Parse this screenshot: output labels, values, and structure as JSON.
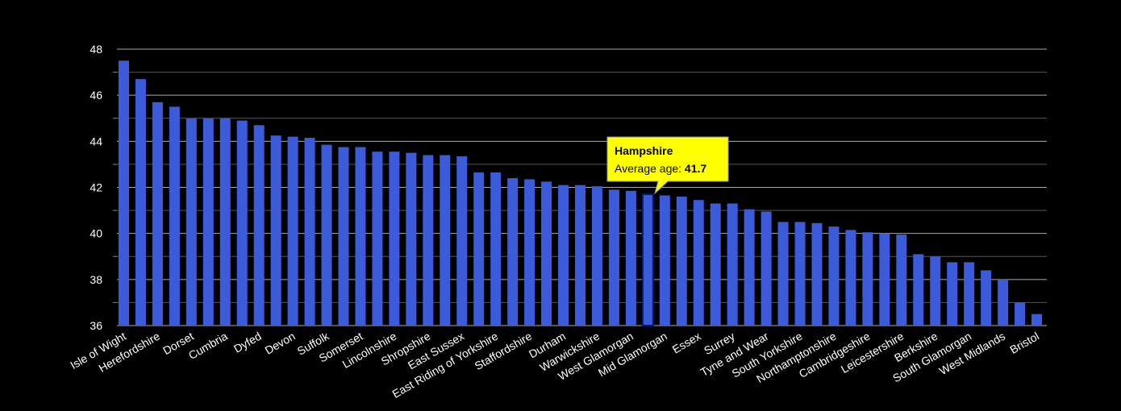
{
  "chart_data": {
    "type": "bar",
    "categories": [
      "Isle of Wight",
      null,
      "Herefordshire",
      null,
      "Dorset",
      null,
      "Cumbria",
      null,
      "Dyfed",
      null,
      "Devon",
      null,
      "Suffolk",
      null,
      "Somerset",
      null,
      "Lincolnshire",
      null,
      "Shropshire",
      null,
      "East Sussex",
      null,
      "East Riding of Yorkshire",
      null,
      "Staffordshire",
      null,
      "Durham",
      null,
      "Warwickshire",
      null,
      "West Glamorgan",
      null,
      "Mid Glamorgan",
      null,
      "Essex",
      null,
      "Surrey",
      null,
      "Tyne and Wear",
      null,
      "South Yorkshire",
      null,
      "Northamptonshire",
      null,
      "Cambridgeshire",
      null,
      "Leicestershire",
      null,
      "Berkshire",
      null,
      "South Glamorgan",
      null,
      "West Midlands",
      null,
      "Bristol"
    ],
    "values": [
      47.5,
      46.7,
      45.7,
      45.5,
      45.0,
      45.0,
      45.0,
      44.9,
      44.7,
      44.25,
      44.2,
      44.15,
      43.85,
      43.75,
      43.75,
      43.55,
      43.55,
      43.5,
      43.4,
      43.4,
      43.35,
      42.65,
      42.65,
      42.4,
      42.35,
      42.25,
      42.1,
      42.1,
      42.05,
      41.9,
      41.85,
      41.7,
      41.65,
      41.6,
      41.45,
      41.3,
      41.3,
      41.05,
      40.95,
      40.5,
      40.5,
      40.45,
      40.3,
      40.15,
      40.05,
      40.0,
      39.95,
      39.1,
      39.0,
      38.75,
      38.75,
      38.4,
      38.0,
      37.0,
      36.5
    ],
    "color": "#3b5bdb",
    "ylim": [
      36,
      48
    ],
    "yticks": [
      36,
      38,
      40,
      42,
      44,
      46,
      48
    ],
    "minor_yticks": [
      37,
      39,
      41,
      43,
      45,
      47
    ],
    "grid": true,
    "highlight": 31,
    "tooltip": {
      "name": "Hampshire",
      "label": "Average age:"
    }
  }
}
